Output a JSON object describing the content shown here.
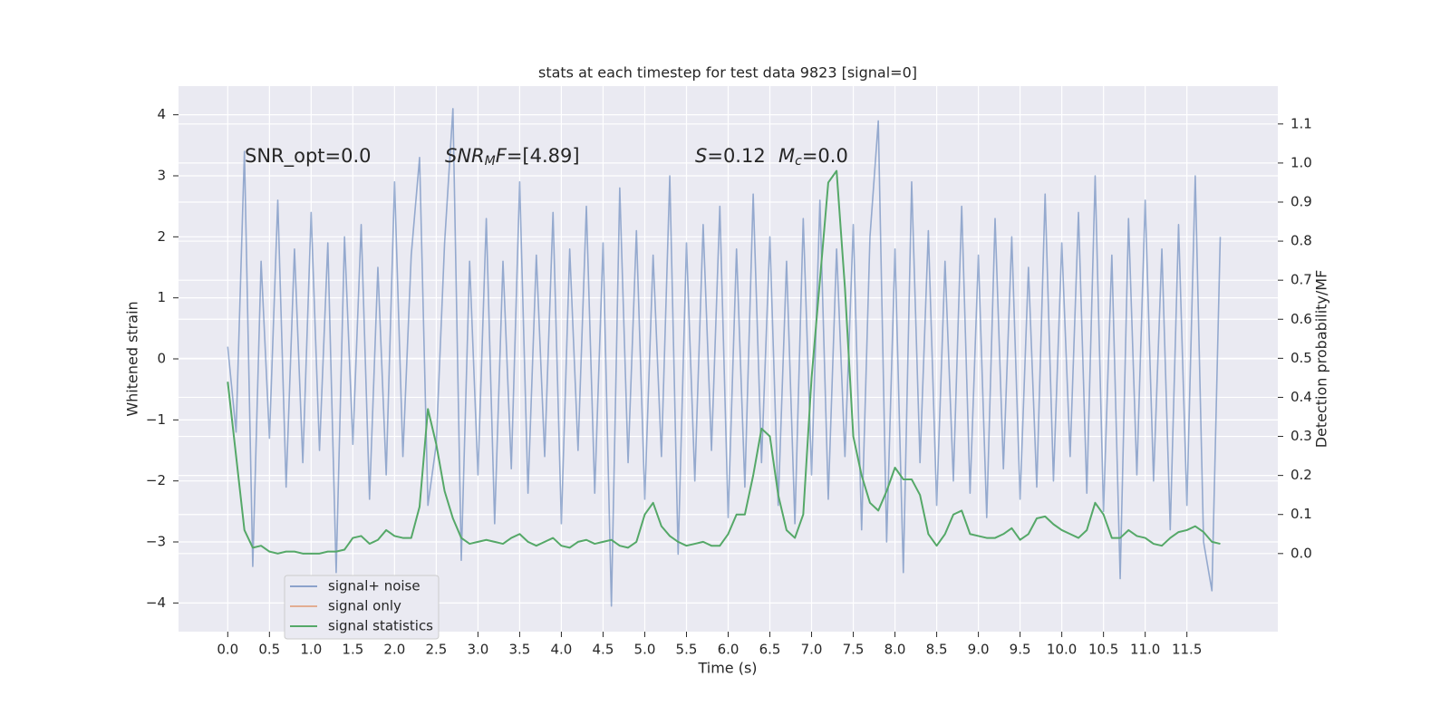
{
  "chart_data": {
    "type": "line",
    "title": "stats at each timestep for test data 9823 [signal=0]",
    "x_label": "Time (s)",
    "y_label": "Whitened strain",
    "y2_label": "Detection probability/MF",
    "annotations": [
      [
        {
          "text": "SNR_opt=0.0",
          "style": "normal"
        }
      ],
      [
        {
          "text": "SNR",
          "style": "italic"
        },
        {
          "text": "M",
          "style": "italic-sub"
        },
        {
          "text": "F",
          "style": "italic"
        },
        {
          "text": "=[4.89]",
          "style": "normal"
        }
      ],
      [
        {
          "text": "S",
          "style": "italic"
        },
        {
          "text": "=0.12",
          "style": "normal"
        }
      ],
      [
        {
          "text": "M",
          "style": "italic"
        },
        {
          "text": "c",
          "style": "italic-sub"
        },
        {
          "text": "=0.0",
          "style": "normal"
        }
      ]
    ],
    "x": [
      0.0,
      0.1,
      0.2,
      0.3,
      0.4,
      0.5,
      0.6,
      0.7,
      0.8,
      0.9,
      1.0,
      1.1,
      1.2,
      1.3,
      1.4,
      1.5,
      1.6,
      1.7,
      1.8,
      1.9,
      2.0,
      2.1,
      2.2,
      2.3,
      2.4,
      2.5,
      2.6,
      2.7,
      2.8,
      2.9,
      3.0,
      3.1,
      3.2,
      3.3,
      3.4,
      3.5,
      3.6,
      3.7,
      3.8,
      3.9,
      4.0,
      4.1,
      4.2,
      4.3,
      4.4,
      4.5,
      4.6,
      4.7,
      4.8,
      4.9,
      5.0,
      5.1,
      5.2,
      5.3,
      5.4,
      5.5,
      5.6,
      5.7,
      5.8,
      5.9,
      6.0,
      6.1,
      6.2,
      6.3,
      6.4,
      6.5,
      6.6,
      6.7,
      6.8,
      6.9,
      7.0,
      7.1,
      7.2,
      7.3,
      7.4,
      7.5,
      7.6,
      7.7,
      7.8,
      7.9,
      8.0,
      8.1,
      8.2,
      8.3,
      8.4,
      8.5,
      8.6,
      8.7,
      8.8,
      8.9,
      9.0,
      9.1,
      9.2,
      9.3,
      9.4,
      9.5,
      9.6,
      9.7,
      9.8,
      9.9,
      10.0,
      10.1,
      10.2,
      10.3,
      10.4,
      10.5,
      10.6,
      10.7,
      10.8,
      10.9,
      11.0,
      11.1,
      11.2,
      11.3,
      11.4,
      11.5,
      11.6,
      11.7,
      11.8,
      11.9
    ],
    "series": [
      {
        "name": "signal+ noise",
        "color": "#4c72b0",
        "axis": "y",
        "values": [
          0.2,
          -1.2,
          3.4,
          -3.4,
          1.6,
          -1.3,
          2.6,
          -2.1,
          1.8,
          -1.7,
          2.4,
          -1.5,
          1.9,
          -3.5,
          2.0,
          -1.4,
          2.2,
          -2.3,
          1.5,
          -1.9,
          2.9,
          -1.6,
          1.7,
          3.3,
          -2.4,
          -1.4,
          1.9,
          4.1,
          -3.3,
          1.6,
          -1.9,
          2.3,
          -2.7,
          1.6,
          -1.8,
          2.9,
          -2.2,
          1.7,
          -1.6,
          2.4,
          -2.7,
          1.8,
          -1.5,
          2.5,
          -2.2,
          1.9,
          -4.05,
          2.8,
          -1.7,
          2.1,
          -2.3,
          1.7,
          -1.6,
          3.0,
          -3.2,
          1.9,
          -2.0,
          2.2,
          -1.5,
          2.5,
          -2.6,
          1.8,
          -2.1,
          2.7,
          -1.7,
          2.0,
          -2.4,
          1.6,
          -2.7,
          2.3,
          -1.9,
          2.6,
          -2.3,
          1.8,
          -1.6,
          2.2,
          -2.8,
          2.0,
          3.9,
          -3.0,
          1.8,
          -3.5,
          2.9,
          -1.7,
          2.1,
          -2.4,
          1.6,
          -2.0,
          2.5,
          -2.2,
          1.7,
          -2.6,
          2.3,
          -1.8,
          2.0,
          -2.3,
          1.5,
          -2.1,
          2.7,
          -2.0,
          1.9,
          -1.6,
          2.4,
          -2.2,
          3.0,
          -2.5,
          1.7,
          -3.6,
          2.3,
          -1.9,
          2.6,
          -2.0,
          1.8,
          -2.8,
          2.2,
          -2.4,
          3.0,
          -3.0,
          -3.8,
          2.0
        ]
      },
      {
        "name": "signal only",
        "color": "#dd8452",
        "axis": "y",
        "values": [
          null,
          null,
          null,
          null,
          null,
          null,
          null,
          null,
          null,
          null,
          null,
          null,
          null,
          null,
          null,
          null,
          null,
          null,
          null,
          null,
          null,
          null,
          null,
          null,
          null,
          null,
          null,
          null,
          null,
          null,
          null,
          null,
          null,
          null,
          null,
          null,
          null,
          null,
          null,
          null,
          null,
          null,
          null,
          null,
          null,
          null,
          null,
          null,
          null,
          null,
          null,
          null,
          null,
          null,
          null,
          null,
          null,
          null,
          null,
          null,
          null,
          null,
          null,
          null,
          null,
          null,
          null,
          null,
          null,
          null,
          null,
          null,
          null,
          null,
          null,
          null,
          null,
          null,
          null,
          null,
          null,
          null,
          null,
          null,
          null,
          null,
          null,
          null,
          null,
          null,
          null,
          null,
          null,
          null,
          null,
          null,
          null,
          null,
          null,
          null,
          null,
          null,
          null,
          null,
          null,
          null,
          null,
          null,
          null,
          null,
          null,
          null,
          null,
          null,
          null,
          null,
          null,
          null,
          null,
          null
        ]
      },
      {
        "name": "signal statistics",
        "color": "#55a868",
        "axis": "y2",
        "values": [
          0.44,
          0.25,
          0.06,
          0.015,
          0.02,
          0.005,
          0.0,
          0.005,
          0.005,
          0.0,
          0.0,
          0.0,
          0.005,
          0.005,
          0.01,
          0.04,
          0.045,
          0.025,
          0.035,
          0.06,
          0.045,
          0.04,
          0.04,
          0.12,
          0.37,
          0.28,
          0.16,
          0.09,
          0.04,
          0.025,
          0.03,
          0.035,
          0.03,
          0.025,
          0.04,
          0.05,
          0.03,
          0.02,
          0.03,
          0.04,
          0.02,
          0.015,
          0.03,
          0.035,
          0.025,
          0.03,
          0.035,
          0.02,
          0.015,
          0.03,
          0.1,
          0.13,
          0.07,
          0.045,
          0.03,
          0.02,
          0.025,
          0.03,
          0.02,
          0.02,
          0.05,
          0.1,
          0.1,
          0.2,
          0.32,
          0.3,
          0.15,
          0.06,
          0.04,
          0.1,
          0.45,
          0.7,
          0.95,
          0.98,
          0.68,
          0.3,
          0.2,
          0.13,
          0.11,
          0.16,
          0.22,
          0.19,
          0.19,
          0.15,
          0.05,
          0.02,
          0.05,
          0.1,
          0.11,
          0.05,
          0.045,
          0.04,
          0.04,
          0.05,
          0.065,
          0.035,
          0.05,
          0.09,
          0.095,
          0.075,
          0.06,
          0.05,
          0.04,
          0.06,
          0.13,
          0.1,
          0.04,
          0.04,
          0.06,
          0.045,
          0.04,
          0.025,
          0.02,
          0.04,
          0.055,
          0.06,
          0.07,
          0.055,
          0.03,
          0.025
        ]
      }
    ],
    "xlim": [
      -0.59,
      12.59
    ],
    "ylim": [
      -4.47,
      4.47
    ],
    "y2lim": [
      -0.2,
      1.197
    ],
    "xticks": [
      {
        "value": 0,
        "label": "0.0"
      },
      {
        "value": 0.5,
        "label": "0.5"
      },
      {
        "value": 1,
        "label": "1.0"
      },
      {
        "value": 1.5,
        "label": "1.5"
      },
      {
        "value": 2,
        "label": "2.0"
      },
      {
        "value": 2.5,
        "label": "2.5"
      },
      {
        "value": 3,
        "label": "3.0"
      },
      {
        "value": 3.5,
        "label": "3.5"
      },
      {
        "value": 4,
        "label": "4.0"
      },
      {
        "value": 4.5,
        "label": "4.5"
      },
      {
        "value": 5,
        "label": "5.0"
      },
      {
        "value": 5.5,
        "label": "5.5"
      },
      {
        "value": 6,
        "label": "6.0"
      },
      {
        "value": 6.5,
        "label": "6.5"
      },
      {
        "value": 7,
        "label": "7.0"
      },
      {
        "value": 7.5,
        "label": "7.5"
      },
      {
        "value": 8,
        "label": "8.0"
      },
      {
        "value": 8.5,
        "label": "8.5"
      },
      {
        "value": 9,
        "label": "9.0"
      },
      {
        "value": 9.5,
        "label": "9.5"
      },
      {
        "value": 10,
        "label": "10.0"
      },
      {
        "value": 10.5,
        "label": "10.5"
      },
      {
        "value": 11,
        "label": "11.0"
      },
      {
        "value": 11.5,
        "label": "11.5"
      }
    ],
    "yticks": [
      {
        "value": -4,
        "label": "−4"
      },
      {
        "value": -3,
        "label": "−3"
      },
      {
        "value": -2,
        "label": "−2"
      },
      {
        "value": -1,
        "label": "−1"
      },
      0,
      1,
      2,
      3,
      4
    ],
    "y2ticks": [
      {
        "value": 0,
        "label": "0.0"
      },
      {
        "value": 0.1,
        "label": "0.1"
      },
      {
        "value": 0.2,
        "label": "0.2"
      },
      {
        "value": 0.3,
        "label": "0.3"
      },
      {
        "value": 0.4,
        "label": "0.4"
      },
      {
        "value": 0.5,
        "label": "0.5"
      },
      {
        "value": 0.6,
        "label": "0.6"
      },
      {
        "value": 0.7,
        "label": "0.7"
      },
      {
        "value": 0.8,
        "label": "0.8"
      },
      {
        "value": 0.9,
        "label": "0.9"
      },
      {
        "value": 1,
        "label": "1.0"
      },
      {
        "value": 1.1,
        "label": "1.1"
      }
    ],
    "grid": true,
    "legend": "lower left"
  }
}
